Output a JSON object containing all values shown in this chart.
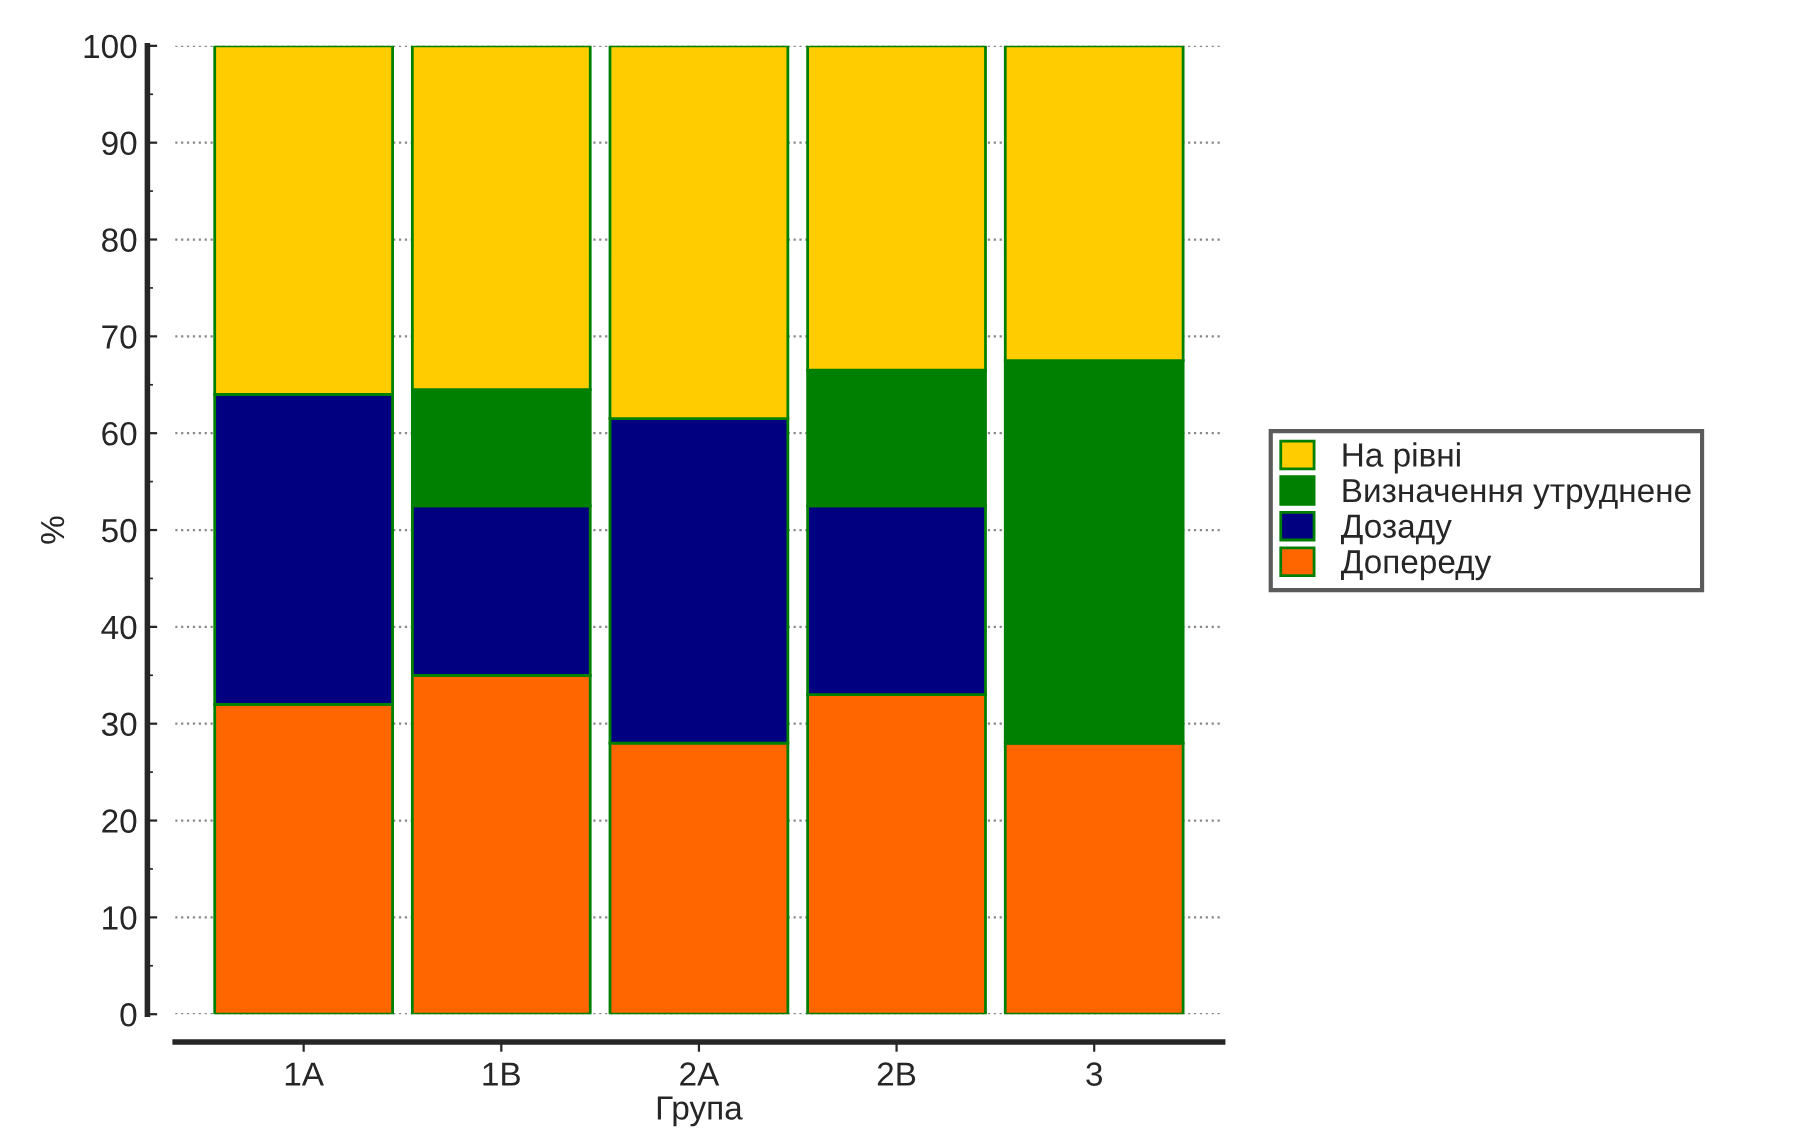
{
  "chart_data": {
    "type": "bar",
    "stacked": true,
    "xlabel": "Група",
    "ylabel": "%",
    "categories": [
      "1A",
      "1B",
      "2A",
      "2B",
      "3"
    ],
    "series": [
      {
        "name": "Допереду",
        "color": "#ff6600",
        "values": [
          32,
          35,
          28,
          33,
          28
        ]
      },
      {
        "name": "Дозаду",
        "color": "#000080",
        "values": [
          32,
          17.5,
          33.5,
          19.5,
          0
        ]
      },
      {
        "name": "Визначення утруднене",
        "color": "#008000",
        "values": [
          0,
          12,
          0,
          14,
          39.5
        ]
      },
      {
        "name": "На рівні",
        "color": "#ffcc00",
        "values": [
          36,
          35.5,
          38.5,
          33.5,
          32.5
        ]
      }
    ],
    "ylim": [
      0,
      100
    ],
    "yticks": [
      0,
      10,
      20,
      30,
      40,
      50,
      60,
      70,
      80,
      90,
      100
    ],
    "grid": "y",
    "legend": "right"
  }
}
